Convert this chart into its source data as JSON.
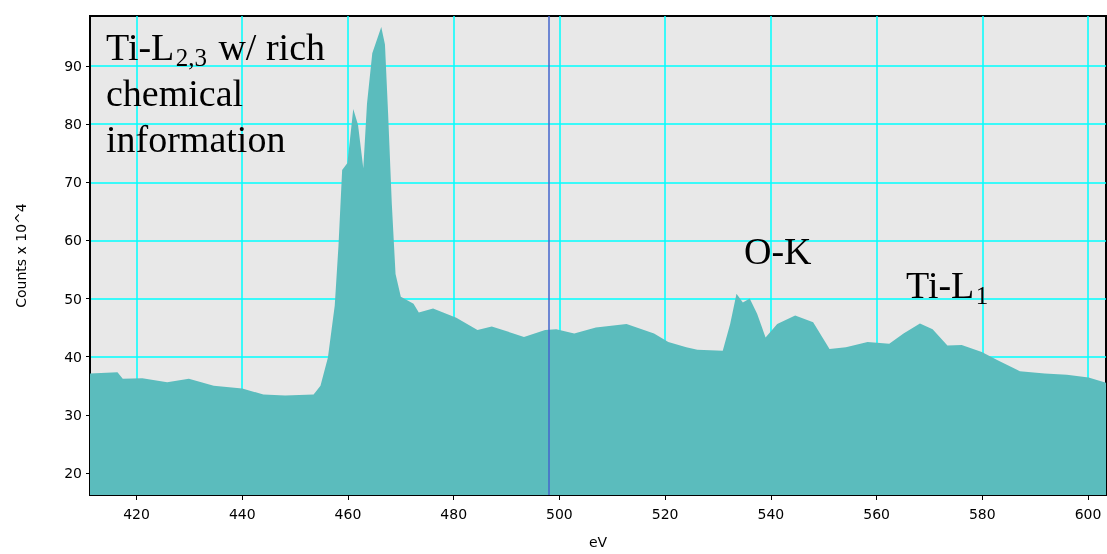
{
  "chart_data": {
    "type": "area",
    "xlabel": "eV",
    "ylabel": "Counts x 10^4",
    "xlim": [
      411.2,
      603.4
    ],
    "ylim": [
      16.2,
      98.6
    ],
    "xticks": [
      420,
      440,
      460,
      480,
      500,
      520,
      540,
      560,
      580,
      600
    ],
    "yticks": [
      20,
      30,
      40,
      50,
      60,
      70,
      80,
      90
    ],
    "grid": true,
    "series": [
      {
        "color": "#5bbcbd",
        "x": [
          411.2,
          416.4,
          417.4,
          421.1,
          425.8,
          429.9,
          434.6,
          440,
          444,
          448.1,
          453.5,
          454.8,
          456.2,
          457.5,
          458.2,
          458.9,
          459.9,
          461.0,
          461.9,
          462.9,
          463.6,
          464.6,
          466.3,
          467.0,
          467.6,
          468.3,
          469.0,
          470.0,
          472.4,
          473.4,
          476.1,
          480.5,
          484.5,
          487.2,
          493.3,
          497.3,
          499.4,
          502.8,
          506.9,
          512.7,
          517.9,
          520.6,
          524.0,
          526.1,
          530.9,
          532.3,
          533.5,
          534.7,
          536.0,
          537.4,
          539.0,
          541.2,
          544.6,
          548.0,
          551.1,
          554.2,
          558.3,
          562.4,
          565.1,
          568.2,
          570.6,
          573.4,
          576.1,
          579.9,
          582.9,
          587.1,
          591.8,
          596.0,
          600.1,
          603.4
        ],
        "values": [
          37.1,
          37.3,
          36.2,
          36.3,
          35.6,
          36.2,
          35.0,
          34.5,
          33.5,
          33.3,
          33.5,
          35.0,
          39.8,
          48.8,
          59.0,
          72.1,
          73.3,
          82.6,
          79.9,
          72.4,
          83.5,
          92.2,
          96.7,
          93.7,
          81.7,
          66.2,
          54.2,
          50.3,
          49.1,
          47.6,
          48.3,
          46.7,
          44.6,
          45.2,
          43.4,
          44.6,
          44.7,
          44.0,
          45.0,
          45.6,
          44.0,
          42.5,
          41.6,
          41.2,
          41.0,
          45.6,
          50.8,
          49.3,
          50.0,
          47.4,
          43.3,
          45.6,
          47.1,
          45.9,
          41.3,
          41.6,
          42.5,
          42.2,
          44.0,
          45.7,
          44.7,
          41.9,
          42.0,
          40.8,
          39.4,
          37.5,
          37.1,
          36.9,
          36.4,
          35.5
        ]
      }
    ],
    "ref_lines": [
      {
        "axis": "x",
        "value": 497.9,
        "color": "#4466cc"
      }
    ],
    "annotations": [
      "Ti-L$_{2,3}$ w/ rich chemical information",
      "O-K",
      "Ti-L$_{1}$"
    ]
  }
}
